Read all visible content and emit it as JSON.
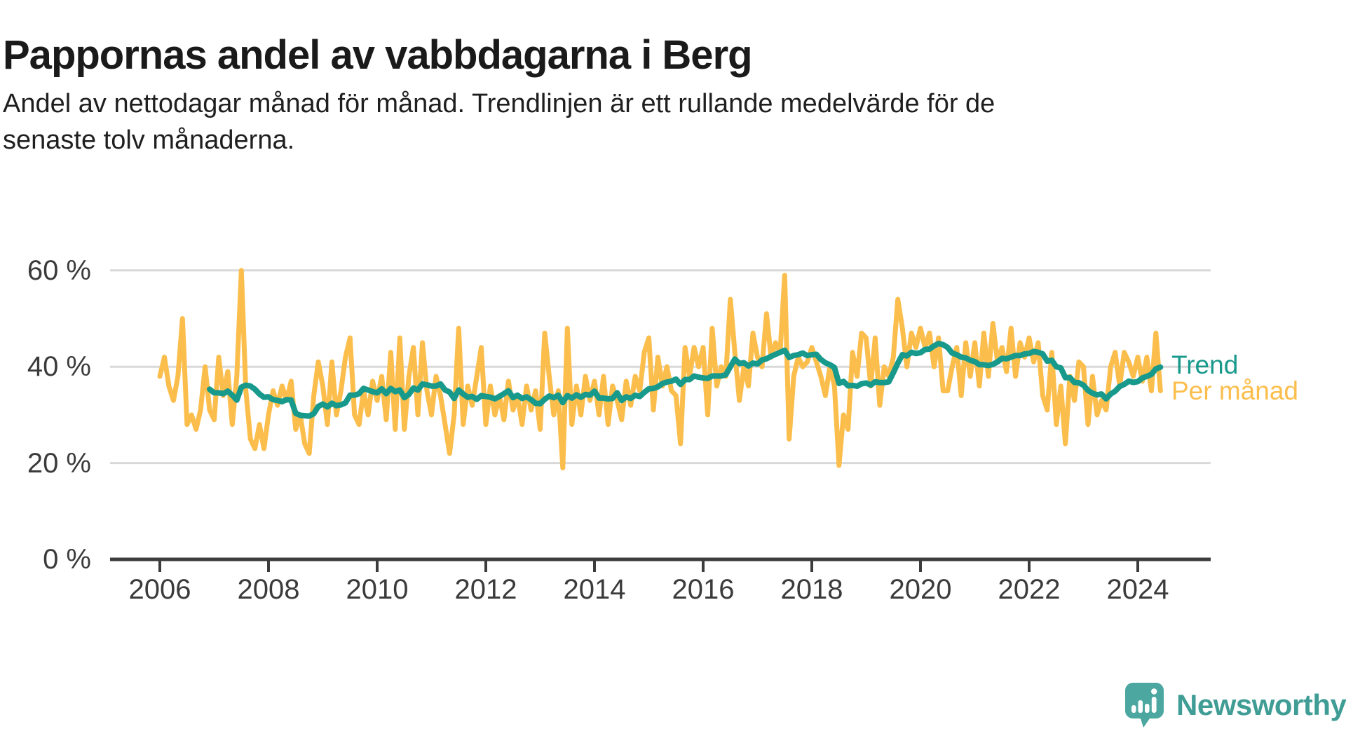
{
  "header": {
    "title": "Pappornas andel av vabbdagarna i Berg",
    "subtitle": "Andel av nettodagar månad för månad. Trendlinjen är ett rullande medelvärde för de senaste tolv månaderna.",
    "subtitle_lines": [
      "Andel av nettodagar månad för månad. Trendlinjen är ett rullande medelvärde för de",
      "senaste tolv månaderna."
    ]
  },
  "branding": {
    "name": "Newsworthy",
    "logo_icon": "speech-bubble-bar-chart-exclamation",
    "logo_color": "#4BA7A0",
    "text_color": "#3F9D95"
  },
  "chart_data": {
    "type": "line",
    "title": "Pappornas andel av vabbdagarna i Berg",
    "xlabel": "",
    "ylabel": "",
    "unit": "%",
    "x_range": [
      "2006-01",
      "2024-06"
    ],
    "ylim": [
      0,
      65
    ],
    "grid": "horizontal",
    "legend_position": "right-end-of-lines",
    "y_ticks": [
      {
        "label": "0 %",
        "value": 0
      },
      {
        "label": "20 %",
        "value": 20
      },
      {
        "label": "40 %",
        "value": 40
      },
      {
        "label": "60 %",
        "value": 60
      }
    ],
    "x_ticks": [
      {
        "label": "2006",
        "value": 2006
      },
      {
        "label": "2008",
        "value": 2008
      },
      {
        "label": "2010",
        "value": 2010
      },
      {
        "label": "2012",
        "value": 2012
      },
      {
        "label": "2014",
        "value": 2014
      },
      {
        "label": "2016",
        "value": 2016
      },
      {
        "label": "2018",
        "value": 2018
      },
      {
        "label": "2020",
        "value": 2020
      },
      {
        "label": "2022",
        "value": 2022
      },
      {
        "label": "2024",
        "value": 2024
      }
    ],
    "series": [
      {
        "name": "Per månad",
        "color": "#FBBE4C",
        "role": "monthly-values",
        "values_by_year": {
          "2006": [
            38,
            42,
            36,
            33,
            38,
            50,
            28,
            30,
            27,
            31,
            40,
            31
          ],
          "2007": [
            29,
            42,
            34,
            39,
            28,
            38,
            60,
            35,
            25,
            23,
            28,
            23
          ],
          "2008": [
            30,
            35,
            32,
            36,
            33,
            37,
            27,
            30,
            24,
            22,
            34,
            41
          ],
          "2009": [
            36,
            28,
            41,
            30,
            35,
            42,
            46,
            30,
            28,
            35,
            30,
            37
          ],
          "2010": [
            33,
            38,
            29,
            43,
            27,
            46,
            27,
            38,
            44,
            30,
            45,
            35
          ],
          "2011": [
            30,
            38,
            34,
            28,
            22,
            30,
            48,
            28,
            36,
            32,
            38,
            44
          ],
          "2012": [
            28,
            36,
            30,
            34,
            29,
            37,
            31,
            34,
            28,
            36,
            31,
            35
          ],
          "2013": [
            27,
            47,
            38,
            30,
            35,
            19,
            48,
            28,
            36,
            30,
            38,
            33
          ],
          "2014": [
            37,
            30,
            38,
            28,
            36,
            33,
            29,
            37,
            32,
            38,
            35,
            43
          ],
          "2015": [
            46,
            31,
            42,
            36,
            40,
            35,
            34,
            24,
            44,
            38,
            44,
            40
          ],
          "2016": [
            44,
            30,
            48,
            36,
            40,
            38,
            54,
            43,
            33,
            40,
            36,
            47
          ],
          "2017": [
            42,
            40,
            51,
            42,
            45,
            43,
            59,
            25,
            38,
            42,
            40,
            41
          ],
          "2018": [
            44,
            41,
            38,
            34,
            40,
            36,
            19.5,
            30,
            27,
            43,
            38,
            47
          ],
          "2019": [
            46,
            36,
            46,
            32,
            40,
            38,
            42,
            54,
            48,
            40,
            47,
            44
          ],
          "2020": [
            48,
            44,
            47,
            40,
            46,
            35,
            35,
            40,
            44,
            34,
            45,
            38
          ],
          "2021": [
            45,
            36,
            47,
            38,
            49,
            41,
            44,
            39,
            48,
            38,
            45,
            42
          ],
          "2022": [
            46,
            41,
            45,
            34,
            31,
            43,
            28,
            36,
            24,
            38,
            33,
            41
          ],
          "2023": [
            40,
            28,
            38,
            30,
            33,
            31,
            40,
            43,
            36,
            43,
            41,
            38
          ],
          "2024": [
            42,
            37,
            42,
            35,
            47,
            35
          ]
        }
      },
      {
        "name": "Trend",
        "color": "#17998B",
        "role": "rolling-mean-12-months",
        "derived_from": "Per månad"
      }
    ]
  }
}
